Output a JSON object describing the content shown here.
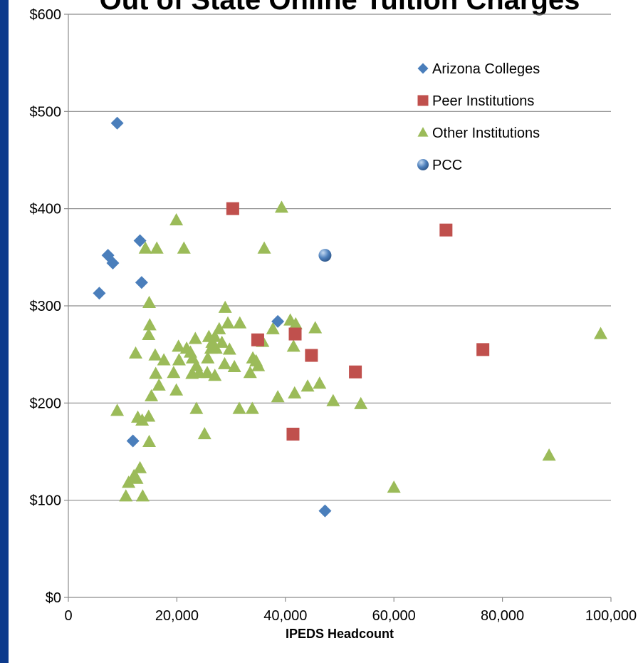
{
  "chart_data": {
    "type": "scatter",
    "title": "Out of State Online Tuition Charges",
    "xlabel": "IPEDS Headcount",
    "ylabel": "",
    "xlim": [
      0,
      100000
    ],
    "ylim": [
      0,
      600
    ],
    "x_ticks": [
      0,
      20000,
      40000,
      60000,
      80000,
      100000
    ],
    "x_tick_labels": [
      "0",
      "20,000",
      "40,000",
      "60,000",
      "80,000",
      "100,000"
    ],
    "y_ticks": [
      0,
      100,
      200,
      300,
      400,
      500,
      600
    ],
    "y_tick_labels": [
      "$0",
      "$100",
      "$200",
      "$300",
      "$400",
      "$500",
      "$600"
    ],
    "grid": "horizontal",
    "legend_position": "top-right",
    "series": [
      {
        "name": "Arizona Colleges",
        "marker": "diamond",
        "color": "#4a7ebb",
        "points": [
          [
            9000,
            488
          ],
          [
            7300,
            352
          ],
          [
            8200,
            344
          ],
          [
            13200,
            367
          ],
          [
            13500,
            324
          ],
          [
            5700,
            313
          ],
          [
            38600,
            284
          ],
          [
            11900,
            161
          ],
          [
            47300,
            89
          ]
        ]
      },
      {
        "name": "Peer Institutions",
        "marker": "square",
        "color": "#c0504d",
        "points": [
          [
            30300,
            400
          ],
          [
            69600,
            378
          ],
          [
            41800,
            271
          ],
          [
            34900,
            265
          ],
          [
            44800,
            249
          ],
          [
            76400,
            255
          ],
          [
            52900,
            232
          ],
          [
            41400,
            168
          ]
        ]
      },
      {
        "name": "Other Institutions",
        "marker": "triangle",
        "color": "#9bbb59",
        "points": [
          [
            39300,
            401
          ],
          [
            19900,
            388
          ],
          [
            14200,
            359
          ],
          [
            16300,
            359
          ],
          [
            21300,
            359
          ],
          [
            36100,
            359
          ],
          [
            28900,
            298
          ],
          [
            14900,
            303
          ],
          [
            15000,
            280
          ],
          [
            14800,
            270
          ],
          [
            31600,
            282
          ],
          [
            29400,
            282
          ],
          [
            12400,
            251
          ],
          [
            16000,
            249
          ],
          [
            17600,
            244
          ],
          [
            20300,
            258
          ],
          [
            21800,
            256
          ],
          [
            22500,
            252
          ],
          [
            23400,
            266
          ],
          [
            25900,
            268
          ],
          [
            26500,
            262
          ],
          [
            27000,
            268
          ],
          [
            27800,
            276
          ],
          [
            28300,
            262
          ],
          [
            29700,
            255
          ],
          [
            26300,
            256
          ],
          [
            27200,
            256
          ],
          [
            25700,
            246
          ],
          [
            30600,
            237
          ],
          [
            28800,
            240
          ],
          [
            22900,
            246
          ],
          [
            23600,
            238
          ],
          [
            24100,
            231
          ],
          [
            22800,
            230
          ],
          [
            20400,
            244
          ],
          [
            19400,
            231
          ],
          [
            19900,
            213
          ],
          [
            16100,
            230
          ],
          [
            16700,
            218
          ],
          [
            15300,
            207
          ],
          [
            25600,
            231
          ],
          [
            27000,
            228
          ],
          [
            33500,
            231
          ],
          [
            34000,
            246
          ],
          [
            34600,
            243
          ],
          [
            35000,
            238
          ],
          [
            35800,
            263
          ],
          [
            37700,
            276
          ],
          [
            40900,
            285
          ],
          [
            41900,
            281
          ],
          [
            41500,
            258
          ],
          [
            45500,
            277
          ],
          [
            44100,
            217
          ],
          [
            46300,
            220
          ],
          [
            41700,
            210
          ],
          [
            38600,
            206
          ],
          [
            48800,
            202
          ],
          [
            53900,
            199
          ],
          [
            9000,
            192
          ],
          [
            23600,
            194
          ],
          [
            31500,
            194
          ],
          [
            33900,
            194
          ],
          [
            25100,
            168
          ],
          [
            12800,
            185
          ],
          [
            13600,
            182
          ],
          [
            14800,
            186
          ],
          [
            14900,
            160
          ],
          [
            12100,
            125
          ],
          [
            12600,
            122
          ],
          [
            13200,
            133
          ],
          [
            11100,
            118
          ],
          [
            10600,
            104
          ],
          [
            13700,
            104
          ],
          [
            60000,
            113
          ],
          [
            88600,
            146
          ],
          [
            98100,
            271
          ]
        ]
      },
      {
        "name": "PCC",
        "marker": "circle",
        "color": "#4a7ebb",
        "points": [
          [
            47300,
            352
          ]
        ]
      }
    ]
  }
}
